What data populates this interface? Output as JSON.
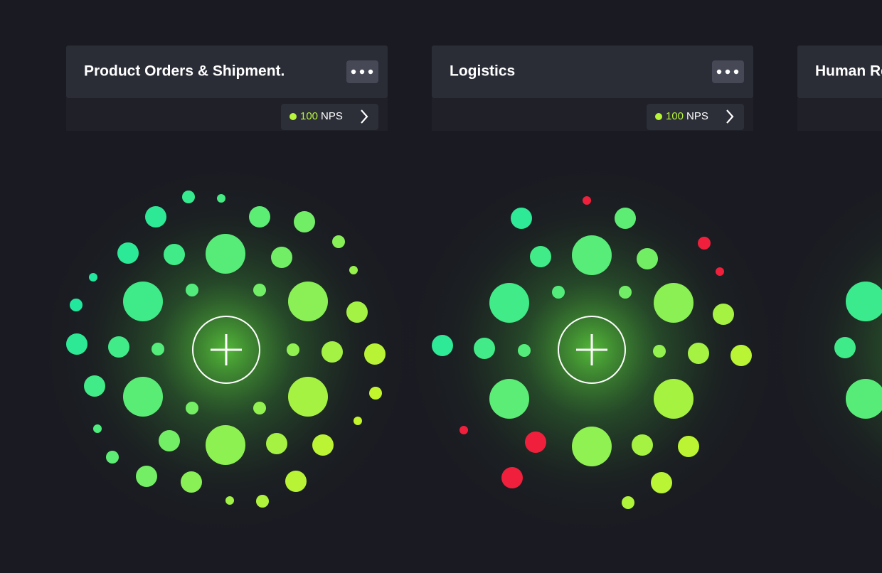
{
  "cards": [
    {
      "title": "Product Orders & Shipment.",
      "score": 100,
      "unit": "NPS"
    },
    {
      "title": "Logistics",
      "score": 100,
      "unit": "NPS"
    },
    {
      "title": "Human Re"
    }
  ]
}
